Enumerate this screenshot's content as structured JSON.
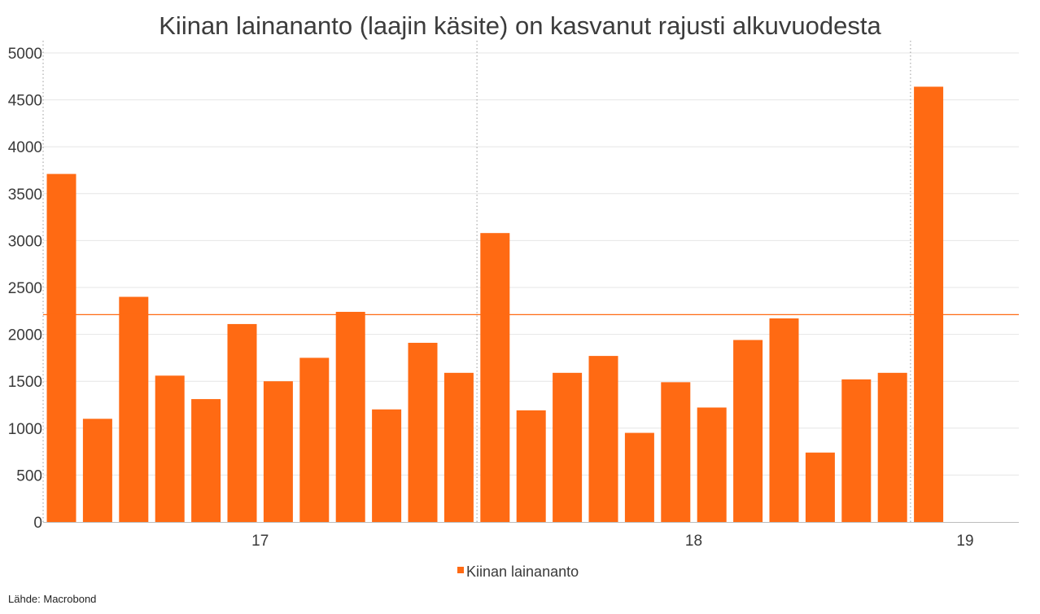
{
  "chart_data": {
    "type": "bar",
    "title": "Kiinan lainananto (laajin käsite) on kasvanut rajusti alkuvuodesta",
    "xlabel": "",
    "ylabel": "",
    "ylim": [
      0,
      5000
    ],
    "yticks": [
      0,
      500,
      1000,
      1500,
      2000,
      2500,
      3000,
      3500,
      4000,
      4500,
      5000
    ],
    "x_tick_labels": [
      "17",
      "18",
      "19"
    ],
    "series": [
      {
        "name": "Kiinan lainananto",
        "color": "#ff6a13",
        "values": [
          3710,
          1100,
          2400,
          1560,
          1310,
          2110,
          1500,
          1750,
          2240,
          1200,
          1910,
          1590,
          3080,
          1190,
          1590,
          1770,
          950,
          1490,
          1220,
          1940,
          2170,
          740,
          1520,
          1590,
          4640
        ]
      }
    ],
    "reference_line": {
      "value": 2210,
      "color": "#ff6a13"
    },
    "legend_position": "bottom-center",
    "grid": true,
    "source": "Lähde: Macrobond"
  }
}
